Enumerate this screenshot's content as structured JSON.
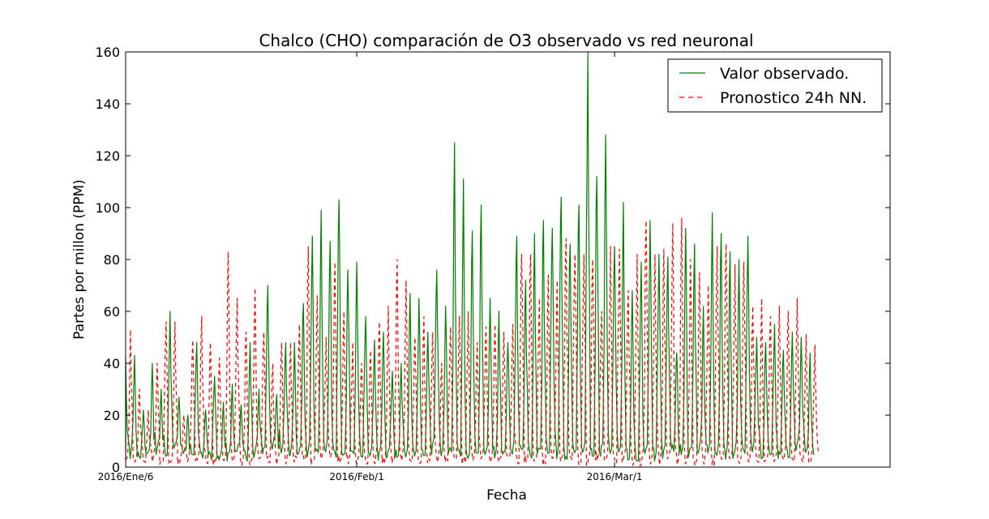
{
  "chart_data": {
    "type": "line",
    "title": "Chalco (CHO) comparación de O3 observado vs red neuronal",
    "xlabel": "Fecha",
    "ylabel": "Partes por millon (PPM)",
    "ylim": [
      0,
      160
    ],
    "yticks": [
      0,
      20,
      40,
      60,
      80,
      100,
      120,
      140,
      160
    ],
    "x_start": "2016-01-06",
    "x_end": "2016-04-01",
    "xticks": [
      {
        "date": "2016-01-06",
        "label": "2016/Ene/6"
      },
      {
        "date": "2016-02-01",
        "label": "2016/Feb/1"
      },
      {
        "date": "2016-03-01",
        "label": "2016/Mar/1"
      }
    ],
    "grid": false,
    "legend_position": "top-right",
    "series": [
      {
        "name": "Valor observado.",
        "color": "#008000",
        "style": "solid",
        "daily_peaks": [
          42,
          43,
          22,
          40,
          30,
          60,
          27,
          20,
          48,
          22,
          35,
          25,
          32,
          24,
          48,
          30,
          70,
          28,
          48,
          48,
          63,
          89,
          99,
          87,
          103,
          76,
          79,
          58,
          49,
          52,
          37,
          40,
          67,
          65,
          52,
          76,
          62,
          125,
          111,
          91,
          101,
          65,
          60,
          48,
          89,
          72,
          90,
          95,
          92,
          104,
          86,
          101,
          160,
          112,
          128,
          85,
          102,
          68,
          79,
          95,
          82,
          81,
          44,
          92,
          86,
          62,
          98,
          90,
          83,
          80,
          89,
          50,
          48,
          55,
          45,
          52,
          50,
          44
        ],
        "sample_values": [
          5,
          42,
          3,
          43,
          5,
          22,
          4,
          40,
          3,
          60,
          18,
          48,
          15,
          35,
          20,
          32,
          3,
          48,
          2,
          70,
          3,
          48,
          4,
          63,
          2,
          99,
          5,
          103,
          4,
          79,
          3,
          52,
          4,
          67,
          3,
          76,
          2,
          125,
          4,
          111,
          3,
          101,
          5,
          60,
          3,
          89,
          4,
          95,
          2,
          104,
          3,
          160,
          4,
          128,
          3,
          102,
          5,
          95,
          3,
          82,
          4,
          92,
          3,
          98,
          5,
          89,
          4,
          55,
          3,
          50,
          4,
          44
        ]
      },
      {
        "name": "Pronostico 24h NN.",
        "color": "#ff0000",
        "style": "dashed",
        "daily_peaks": [
          53,
          30,
          22,
          40,
          56,
          56,
          20,
          49,
          58,
          48,
          42,
          83,
          65,
          52,
          69,
          52,
          40,
          48,
          48,
          55,
          85,
          66,
          50,
          79,
          60,
          48,
          40,
          45,
          56,
          62,
          80,
          72,
          50,
          58,
          52,
          40,
          54,
          58,
          60,
          48,
          54,
          55,
          52,
          55,
          82,
          82,
          65,
          74,
          72,
          88,
          82,
          82,
          80,
          60,
          85,
          84,
          68,
          82,
          95,
          82,
          84,
          94,
          96,
          80,
          75,
          70,
          85,
          86,
          78,
          79,
          62,
          65,
          58,
          62,
          60,
          65,
          51,
          47
        ],
        "sample_values": [
          2,
          53,
          1,
          40,
          2,
          56,
          1,
          58,
          2,
          83,
          1,
          69,
          3,
          52,
          1,
          85,
          2,
          79,
          1,
          56,
          2,
          80,
          1,
          72,
          3,
          58,
          1,
          60,
          2,
          82,
          1,
          74,
          2,
          88,
          1,
          85,
          2,
          82,
          1,
          95,
          3,
          96,
          1,
          86,
          2,
          79,
          1,
          65,
          2,
          62,
          1,
          47
        ]
      }
    ]
  }
}
